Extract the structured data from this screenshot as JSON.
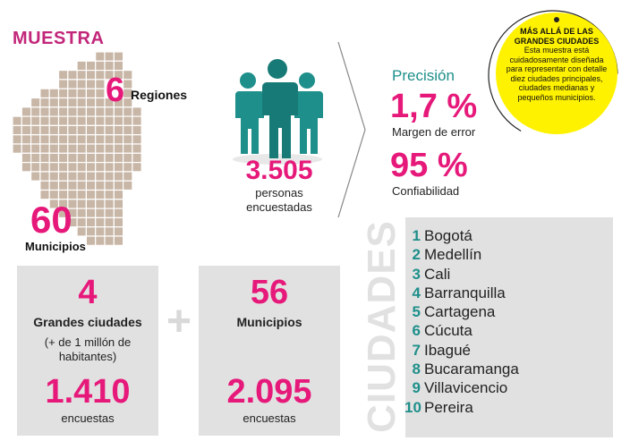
{
  "header": {
    "title": "MUESTRA"
  },
  "regions": {
    "number": "6",
    "label": "Regiones"
  },
  "municipios_map": {
    "number": "60",
    "label": "Municipios"
  },
  "people": {
    "number": "3.505",
    "label_line1": "personas",
    "label_line2": "encuestadas"
  },
  "precision": {
    "title": "Precisión",
    "margin_value": "1,7 %",
    "margin_label": "Margen de error",
    "confidence_value": "95 %",
    "confidence_label": "Confiabilidad"
  },
  "note": {
    "title_line1": "MÁS ALLÁ DE LAS",
    "title_line2": "GRANDES CIUDADES",
    "body": "Esta muestra está cuidadosamente diseñada para representar con detalle diez ciudades principales, ciudades medianas y pequeños municipios."
  },
  "big_cities": {
    "count": "4",
    "label": "Grandes ciudades",
    "sub_line1": "(+ de 1 millón de",
    "sub_line2": "habitantes)",
    "surveys": "1.410",
    "surveys_label": "encuestas"
  },
  "plus_sign": "+",
  "municipalities": {
    "count": "56",
    "label": "Municipios",
    "surveys": "2.095",
    "surveys_label": "encuestas"
  },
  "cities_panel": {
    "vertical_label": "CIUDADES",
    "cities": [
      {
        "num": "1",
        "name": "Bogotá"
      },
      {
        "num": "2",
        "name": "Medellín"
      },
      {
        "num": "3",
        "name": "Cali"
      },
      {
        "num": "4",
        "name": "Barranquilla"
      },
      {
        "num": "5",
        "name": "Cartagena"
      },
      {
        "num": "6",
        "name": "Cúcuta"
      },
      {
        "num": "7",
        "name": "Ibagué"
      },
      {
        "num": "8",
        "name": "Bucaramanga"
      },
      {
        "num": "9",
        "name": "Villavicencio"
      },
      {
        "num": "10",
        "name": "Pereira"
      }
    ]
  },
  "colors": {
    "accent": "#e6197a",
    "teal": "#1e8f8a",
    "yellow": "#fff200",
    "map": "#c8b6a6",
    "panel": "#e2e1e1"
  }
}
